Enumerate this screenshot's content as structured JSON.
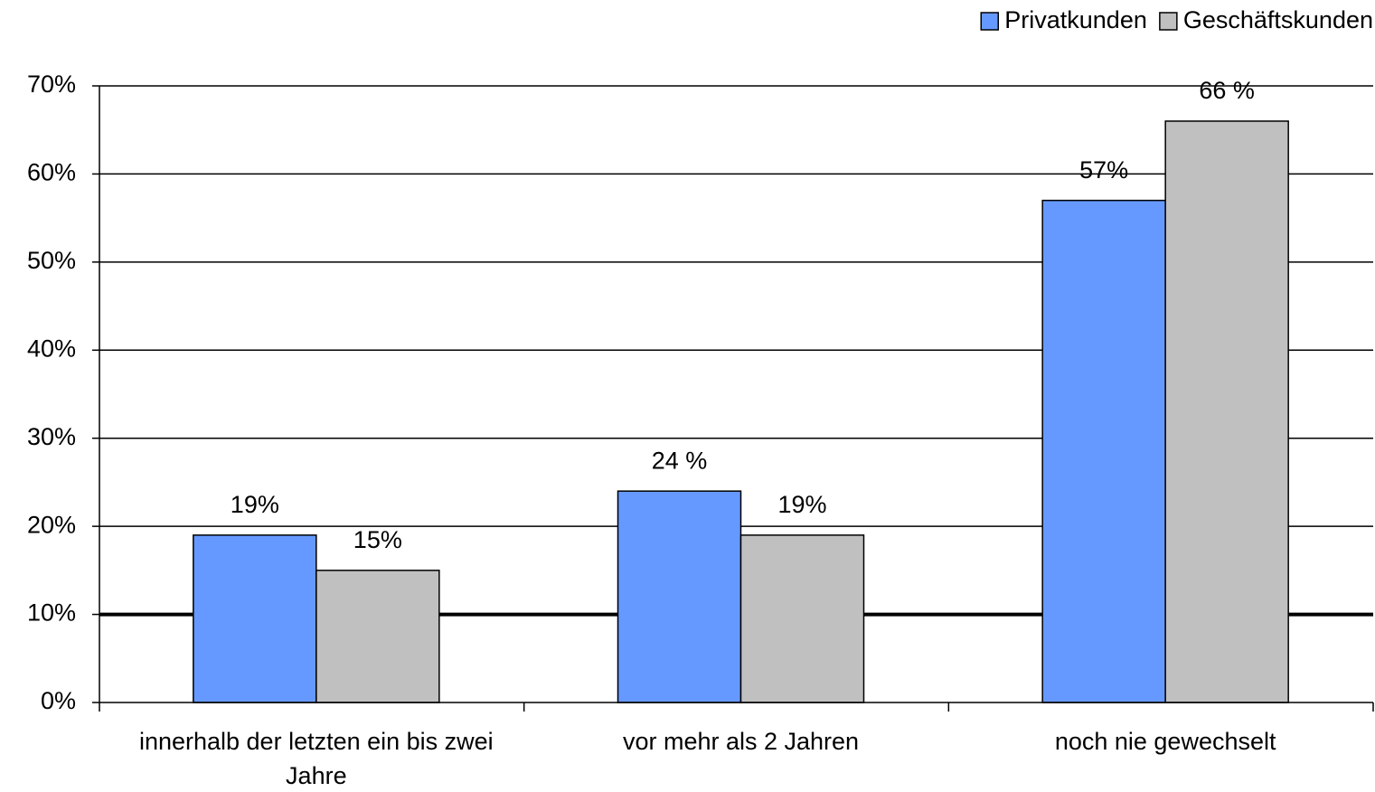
{
  "chart_data": {
    "type": "bar",
    "categories": [
      "innerhalb der letzten ein bis zwei Jahre",
      "vor mehr als 2 Jahren",
      "noch nie gewechselt"
    ],
    "series": [
      {
        "name": "Privatkunden",
        "color": "#6699ff",
        "values": [
          19,
          24,
          57
        ],
        "value_labels": [
          "19%",
          "24 %",
          "57%"
        ]
      },
      {
        "name": "Geschäftskunden",
        "color": "#c0c0c0",
        "values": [
          15,
          19,
          66
        ],
        "value_labels": [
          "15%",
          "19%",
          "66 %"
        ]
      }
    ],
    "ylim": [
      0,
      70
    ],
    "yticks": [
      {
        "value": 0,
        "label": "0%"
      },
      {
        "value": 10,
        "label": "10%"
      },
      {
        "value": 20,
        "label": "20%"
      },
      {
        "value": 30,
        "label": "30%"
      },
      {
        "value": 40,
        "label": "40%"
      },
      {
        "value": 50,
        "label": "50%"
      },
      {
        "value": 60,
        "label": "60%"
      },
      {
        "value": 70,
        "label": "70%"
      }
    ],
    "grid": true,
    "reference_line": 10,
    "legend": "top-right"
  }
}
